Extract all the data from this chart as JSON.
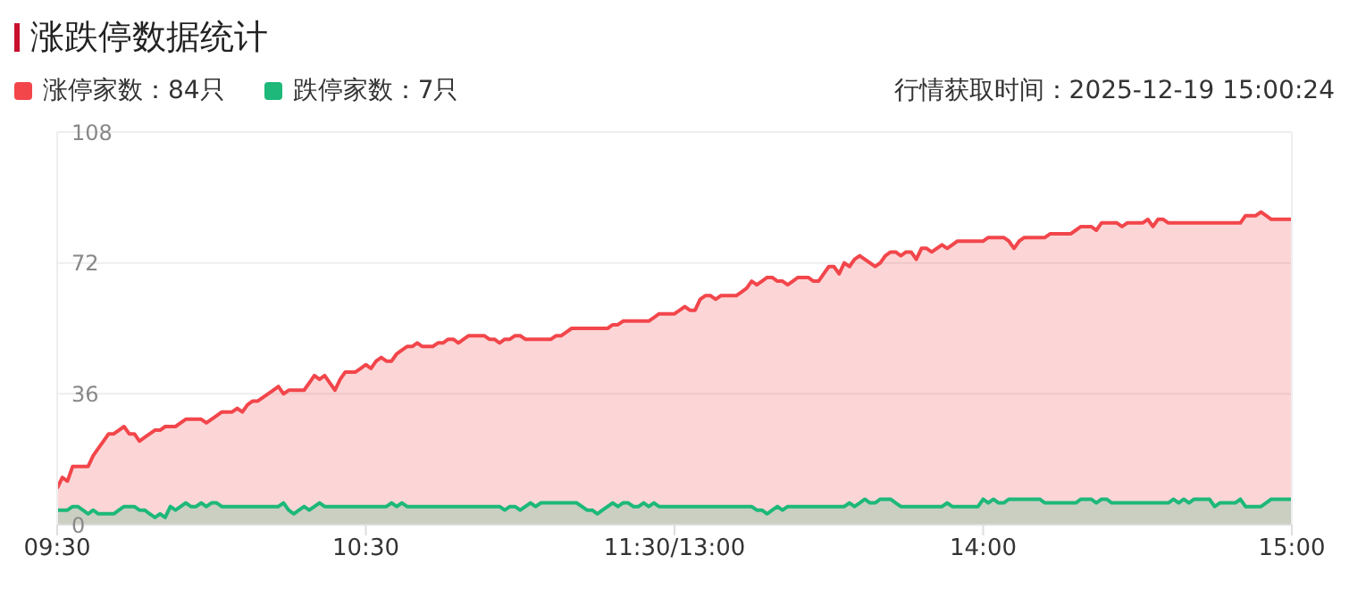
{
  "chart_data": {
    "type": "area",
    "title": "涨跌停数据统计",
    "annotations": [
      "行情获取时间：2025-12-19 15:00:24"
    ],
    "legend": "top left",
    "grid": "y",
    "marker": "none",
    "line_style": "solid",
    "categories": [
      "09:30",
      null,
      null,
      null,
      null,
      null,
      null,
      null,
      null,
      null,
      null,
      null,
      null,
      null,
      null,
      null,
      null,
      null,
      null,
      null,
      null,
      null,
      null,
      null,
      null,
      null,
      null,
      null,
      null,
      null,
      null,
      null,
      null,
      null,
      null,
      null,
      null,
      null,
      null,
      null,
      null,
      null,
      null,
      null,
      null,
      null,
      null,
      null,
      null,
      null,
      null,
      null,
      null,
      null,
      null,
      null,
      null,
      null,
      null,
      null,
      "10:30",
      null,
      null,
      null,
      null,
      null,
      null,
      null,
      null,
      null,
      null,
      null,
      null,
      null,
      null,
      null,
      null,
      null,
      null,
      null,
      null,
      null,
      null,
      null,
      null,
      null,
      null,
      null,
      null,
      null,
      null,
      null,
      null,
      null,
      null,
      null,
      null,
      null,
      null,
      null,
      null,
      null,
      null,
      null,
      null,
      null,
      null,
      null,
      null,
      null,
      null,
      null,
      null,
      null,
      null,
      null,
      null,
      null,
      null,
      null,
      "11:30/13:00",
      null,
      null,
      null,
      null,
      null,
      null,
      null,
      null,
      null,
      null,
      null,
      null,
      null,
      null,
      null,
      null,
      null,
      null,
      null,
      null,
      null,
      null,
      null,
      null,
      null,
      null,
      null,
      null,
      null,
      null,
      null,
      null,
      null,
      null,
      null,
      null,
      null,
      null,
      null,
      null,
      null,
      null,
      null,
      null,
      null,
      null,
      null,
      null,
      null,
      null,
      null,
      null,
      null,
      null,
      null,
      null,
      null,
      null,
      null,
      "14:00",
      null,
      null,
      null,
      null,
      null,
      null,
      null,
      null,
      null,
      null,
      null,
      null,
      null,
      null,
      null,
      null,
      null,
      null,
      null,
      null,
      null,
      null,
      null,
      null,
      null,
      null,
      null,
      null,
      null,
      null,
      null,
      null,
      null,
      null,
      null,
      null,
      null,
      null,
      null,
      null,
      null,
      null,
      null,
      null,
      null,
      null,
      null,
      null,
      null,
      null,
      null,
      null,
      null,
      null,
      null,
      null,
      null,
      null,
      null,
      "15:00"
    ],
    "ylim": [
      0,
      108
    ],
    "yticks": [
      0,
      36,
      72,
      108
    ],
    "series": [
      {
        "name": "涨停家数：84只",
        "color": "#f2464b",
        "values": [
          10,
          13,
          12,
          16,
          16,
          16,
          16,
          19,
          21,
          23,
          25,
          25,
          26,
          27,
          25,
          25,
          23,
          24,
          25,
          26,
          26,
          27,
          27,
          27,
          28,
          29,
          29,
          29,
          29,
          28,
          29,
          30,
          31,
          31,
          31,
          32,
          31,
          33,
          34,
          34,
          35,
          36,
          37,
          38,
          36,
          37,
          37,
          37,
          37,
          39,
          41,
          40,
          41,
          39,
          37,
          40,
          42,
          42,
          42,
          43,
          44,
          43,
          45,
          46,
          45,
          45,
          47,
          48,
          49,
          49,
          50,
          49,
          49,
          49,
          50,
          50,
          51,
          51,
          50,
          51,
          52,
          52,
          52,
          52,
          51,
          51,
          50,
          51,
          51,
          52,
          52,
          51,
          51,
          51,
          51,
          51,
          51,
          52,
          52,
          53,
          54,
          54,
          54,
          54,
          54,
          54,
          54,
          54,
          55,
          55,
          56,
          56,
          56,
          56,
          56,
          56,
          57,
          58,
          58,
          58,
          58,
          59,
          60,
          59,
          59,
          62,
          63,
          63,
          62,
          63,
          63,
          63,
          63,
          64,
          65,
          67,
          66,
          67,
          68,
          68,
          67,
          67,
          66,
          67,
          68,
          68,
          68,
          67,
          67,
          69,
          71,
          71,
          69,
          72,
          71,
          73,
          74,
          73,
          72,
          71,
          72,
          74,
          75,
          75,
          74,
          75,
          75,
          73,
          76,
          76,
          75,
          76,
          77,
          76,
          77,
          78,
          78,
          78,
          78,
          78,
          78,
          79,
          79,
          79,
          79,
          78,
          76,
          78,
          79,
          79,
          79,
          79,
          79,
          80,
          80,
          80,
          80,
          80,
          81,
          82,
          82,
          82,
          81,
          83,
          83,
          83,
          83,
          82,
          83,
          83,
          83,
          83,
          84,
          82,
          84,
          84,
          83,
          83,
          83,
          83,
          83,
          83,
          83,
          83,
          83,
          83,
          83,
          83,
          83,
          83,
          83,
          85,
          85,
          85,
          86,
          85,
          84,
          84,
          84,
          84,
          84
        ]
      },
      {
        "name": "跌停家数：7只",
        "color": "#1db87a",
        "values": [
          4,
          4,
          4,
          5,
          5,
          4,
          3,
          4,
          3,
          3,
          3,
          3,
          4,
          5,
          5,
          5,
          4,
          4,
          3,
          2,
          3,
          2,
          5,
          4,
          5,
          6,
          5,
          5,
          6,
          5,
          6,
          6,
          5,
          5,
          5,
          5,
          5,
          5,
          5,
          5,
          5,
          5,
          5,
          5,
          6,
          4,
          3,
          4,
          5,
          4,
          5,
          6,
          5,
          5,
          5,
          5,
          5,
          5,
          5,
          5,
          5,
          5,
          5,
          5,
          5,
          6,
          5,
          6,
          5,
          5,
          5,
          5,
          5,
          5,
          5,
          5,
          5,
          5,
          5,
          5,
          5,
          5,
          5,
          5,
          5,
          5,
          5,
          4,
          5,
          5,
          4,
          5,
          6,
          5,
          6,
          6,
          6,
          6,
          6,
          6,
          6,
          6,
          5,
          4,
          4,
          3,
          4,
          5,
          6,
          5,
          6,
          6,
          5,
          5,
          6,
          5,
          6,
          5,
          5,
          5,
          5,
          5,
          5,
          5,
          5,
          5,
          5,
          5,
          5,
          5,
          5,
          5,
          5,
          5,
          5,
          5,
          4,
          4,
          3,
          4,
          5,
          4,
          5,
          5,
          5,
          5,
          5,
          5,
          5,
          5,
          5,
          5,
          5,
          5,
          6,
          5,
          6,
          7,
          6,
          6,
          7,
          7,
          7,
          6,
          5,
          5,
          5,
          5,
          5,
          5,
          5,
          5,
          5,
          6,
          5,
          5,
          5,
          5,
          5,
          5,
          7,
          6,
          7,
          6,
          6,
          7,
          7,
          7,
          7,
          7,
          7,
          7,
          6,
          6,
          6,
          6,
          6,
          6,
          6,
          7,
          7,
          7,
          6,
          7,
          7,
          6,
          6,
          6,
          6,
          6,
          6,
          6,
          6,
          6,
          6,
          6,
          6,
          7,
          6,
          7,
          6,
          7,
          7,
          7,
          7,
          5,
          6,
          6,
          6,
          6,
          7,
          5,
          5,
          5,
          5,
          6,
          7,
          7,
          7,
          7,
          7
        ]
      }
    ]
  }
}
